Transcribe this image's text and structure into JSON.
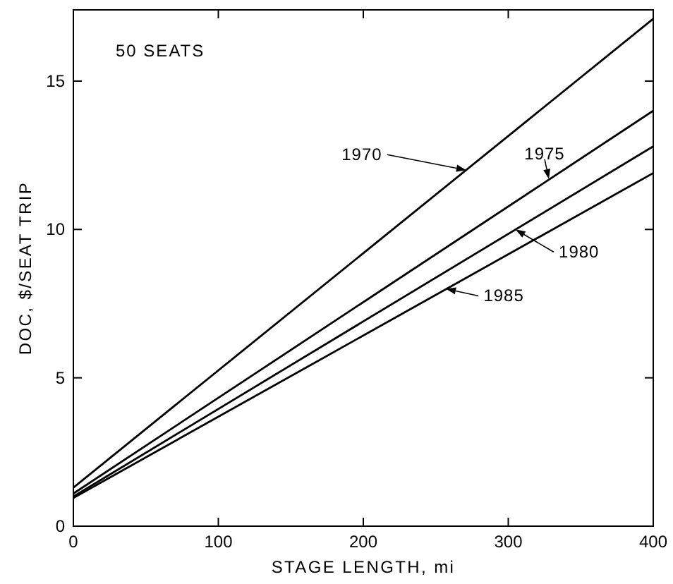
{
  "chart_data": {
    "type": "line",
    "xlabel": "STAGE LENGTH, mi",
    "ylabel": "DOC, $/SEAT TRIP",
    "x": [
      0,
      400
    ],
    "series": [
      {
        "color": "#000000",
        "values": [
          1.3,
          17.1
        ]
      },
      {
        "color": "#000000",
        "values": [
          1.1,
          14.0
        ]
      },
      {
        "color": "#000000",
        "values": [
          1.0,
          12.8
        ]
      },
      {
        "color": "#000000",
        "values": [
          0.95,
          11.9
        ]
      }
    ],
    "xlim": [
      0,
      400
    ],
    "xticks": [
      0,
      100,
      200,
      300,
      400
    ],
    "ylim": [
      0,
      17.4
    ],
    "yticks": [
      0,
      5,
      10,
      15
    ],
    "grid": false,
    "marker": "none",
    "line_style": "solid",
    "annotations": [
      "50 SEATS",
      {
        "text": "1970",
        "x": 271,
        "y": 12.0
      },
      {
        "text": "1975",
        "x": 328,
        "y": 11.7
      },
      {
        "text": "1980",
        "x": 305,
        "y": 10.0
      },
      {
        "text": "1985",
        "x": 257,
        "y": 8.0
      }
    ]
  }
}
